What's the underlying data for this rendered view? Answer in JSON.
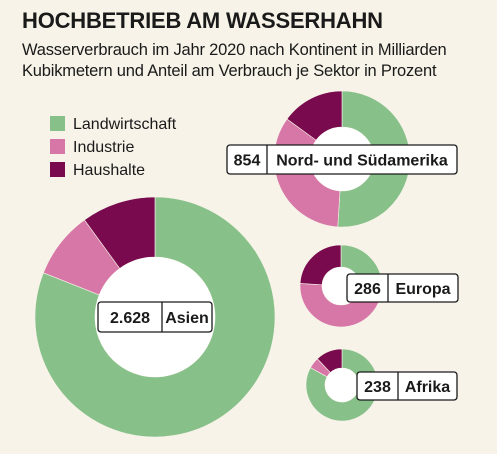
{
  "header": {
    "title": "HOCHBETRIEB AM WASSERHAHN",
    "subtitle": "Wasserverbrauch im Jahr 2020 nach Kontinent in Milliarden Kubikmetern und Anteil am Verbrauch je Sektor in Prozent"
  },
  "colors": {
    "landwirtschaft": "#88c08a",
    "industrie": "#d777a7",
    "haushalte": "#7a0a4e",
    "background": "#f7f3e8"
  },
  "chart_data": {
    "type": "pie",
    "variant": "donut",
    "title": "HOCHBETRIEB AM WASSERHAHN",
    "subtitle": "Wasserverbrauch im Jahr 2020 nach Kontinent in Milliarden Kubikmetern und Anteil am Verbrauch je Sektor in Prozent",
    "legend_placement": "top-left",
    "sectors": [
      "Landwirtschaft",
      "Industrie",
      "Haushalte"
    ],
    "legend": [
      {
        "name": "Landwirtschaft",
        "color": "#88c08a"
      },
      {
        "name": "Industrie",
        "color": "#d777a7"
      },
      {
        "name": "Haushalte",
        "color": "#7a0a4e"
      }
    ],
    "continents": [
      {
        "name": "Asien",
        "total_label": "2.628",
        "total": 2628,
        "shares": [
          81,
          9,
          10
        ]
      },
      {
        "name": "Nord- und Südamerika",
        "total_label": "854",
        "total": 854,
        "shares": [
          51,
          34,
          15
        ]
      },
      {
        "name": "Europa",
        "total_label": "286",
        "total": 286,
        "shares": [
          24,
          52,
          24
        ]
      },
      {
        "name": "Afrika",
        "total_label": "238",
        "total": 238,
        "shares": [
          83,
          5,
          12
        ]
      }
    ]
  }
}
